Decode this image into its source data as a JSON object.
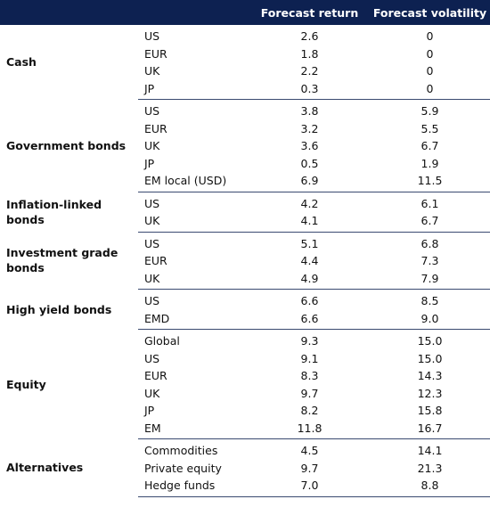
{
  "table": {
    "header": {
      "return": "Forecast return",
      "volatility": "Forecast volatility"
    },
    "groups": [
      {
        "label": "Cash",
        "rows": [
          [
            "US",
            "2.6",
            "0"
          ],
          [
            "EUR",
            "1.8",
            "0"
          ],
          [
            "UK",
            "2.2",
            "0"
          ],
          [
            "JP",
            "0.3",
            "0"
          ]
        ]
      },
      {
        "label": "Government bonds",
        "rows": [
          [
            "US",
            "3.8",
            "5.9"
          ],
          [
            "EUR",
            "3.2",
            "5.5"
          ],
          [
            "UK",
            "3.6",
            "6.7"
          ],
          [
            "JP",
            "0.5",
            "1.9"
          ],
          [
            "EM local (USD)",
            "6.9",
            "11.5"
          ]
        ]
      },
      {
        "label": "Inflation-linked bonds",
        "rows": [
          [
            "US",
            "4.2",
            "6.1"
          ],
          [
            "UK",
            "4.1",
            "6.7"
          ]
        ]
      },
      {
        "label": "Investment grade bonds",
        "rows": [
          [
            "US",
            "5.1",
            "6.8"
          ],
          [
            "EUR",
            "4.4",
            "7.3"
          ],
          [
            "UK",
            "4.9",
            "7.9"
          ]
        ]
      },
      {
        "label": "High yield bonds",
        "rows": [
          [
            "US",
            "6.6",
            "8.5"
          ],
          [
            "EMD",
            "6.6",
            "9.0"
          ]
        ]
      },
      {
        "label": "Equity",
        "rows": [
          [
            "Global",
            "9.3",
            "15.0"
          ],
          [
            "US",
            "9.1",
            "15.0"
          ],
          [
            "EUR",
            "8.3",
            "14.3"
          ],
          [
            "UK",
            "9.7",
            "12.3"
          ],
          [
            "JP",
            "8.2",
            "15.8"
          ],
          [
            "EM",
            "11.8",
            "16.7"
          ]
        ]
      },
      {
        "label": "Alternatives",
        "rows": [
          [
            "Commodities",
            "4.5",
            "14.1"
          ],
          [
            "Private equity",
            "9.7",
            "21.3"
          ],
          [
            "Hedge funds",
            "7.0",
            "8.8"
          ]
        ]
      }
    ]
  }
}
